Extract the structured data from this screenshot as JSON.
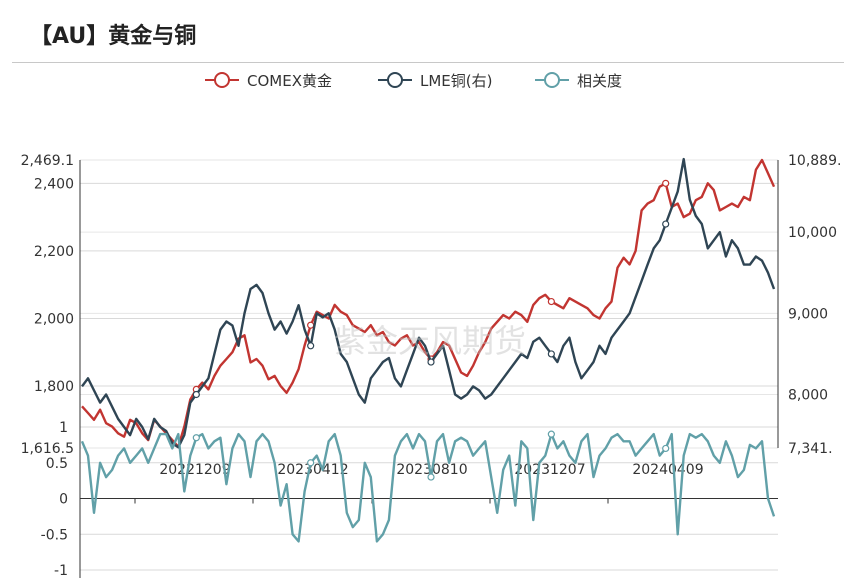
{
  "title": "【AU】黄金与铜",
  "watermark": "紫金天风期货",
  "chart_data": [
    {
      "type": "line",
      "title": "",
      "legend": {
        "position": "top-center",
        "entries": [
          "COMEX黄金",
          "LME铜(右)",
          "相关度"
        ]
      },
      "x_labels": [
        "20221209",
        "20230412",
        "20230810",
        "20231207",
        "20240409"
      ],
      "left_axis": {
        "ticks": [
          "2,469.1",
          "2,400",
          "2,200",
          "2,000",
          "1,800",
          "1,616.5"
        ],
        "range": [
          1616.5,
          2469.1
        ]
      },
      "right_axis": {
        "ticks": [
          "10,889.",
          "10,000",
          "9,000",
          "8,000",
          "7,341."
        ],
        "range": [
          7341,
          10889
        ]
      },
      "series": [
        {
          "name": "COMEX黄金",
          "axis": "left",
          "color": "#c23531",
          "values": [
            1740,
            1720,
            1700,
            1730,
            1690,
            1680,
            1660,
            1650,
            1700,
            1690,
            1660,
            1640,
            1700,
            1680,
            1660,
            1640,
            1620,
            1680,
            1760,
            1790,
            1810,
            1790,
            1830,
            1860,
            1880,
            1900,
            1940,
            1950,
            1870,
            1880,
            1860,
            1820,
            1830,
            1800,
            1780,
            1810,
            1850,
            1920,
            1980,
            2020,
            2010,
            2000,
            2040,
            2020,
            2010,
            1980,
            1970,
            1960,
            1980,
            1950,
            1960,
            1930,
            1920,
            1940,
            1950,
            1920,
            1930,
            1900,
            1880,
            1900,
            1930,
            1920,
            1880,
            1840,
            1830,
            1860,
            1900,
            1930,
            1970,
            1990,
            2010,
            2000,
            2020,
            2010,
            1990,
            2040,
            2060,
            2070,
            2050,
            2040,
            2030,
            2060,
            2050,
            2040,
            2030,
            2010,
            2000,
            2030,
            2050,
            2150,
            2180,
            2160,
            2200,
            2320,
            2340,
            2350,
            2390,
            2400,
            2330,
            2340,
            2300,
            2310,
            2350,
            2360,
            2400,
            2380,
            2320,
            2330,
            2340,
            2330,
            2360,
            2350,
            2440,
            2469,
            2430,
            2390
          ]
        },
        {
          "name": "LME铜(右)",
          "axis": "right",
          "color": "#2f4554",
          "values": [
            8100,
            8200,
            8050,
            7900,
            8000,
            7850,
            7700,
            7600,
            7500,
            7700,
            7600,
            7450,
            7700,
            7600,
            7550,
            7400,
            7350,
            7500,
            7900,
            8000,
            8100,
            8200,
            8500,
            8800,
            8900,
            8850,
            8600,
            9000,
            9300,
            9350,
            9250,
            9000,
            8800,
            8900,
            8750,
            8900,
            9100,
            8800,
            8600,
            9000,
            8950,
            9000,
            8800,
            8500,
            8400,
            8200,
            8000,
            7900,
            8200,
            8300,
            8400,
            8450,
            8200,
            8100,
            8300,
            8500,
            8700,
            8600,
            8400,
            8500,
            8600,
            8300,
            8000,
            7950,
            8000,
            8100,
            8050,
            7950,
            8000,
            8100,
            8200,
            8300,
            8400,
            8500,
            8450,
            8650,
            8700,
            8600,
            8500,
            8400,
            8600,
            8700,
            8400,
            8200,
            8300,
            8400,
            8600,
            8500,
            8700,
            8800,
            8900,
            9000,
            9200,
            9400,
            9600,
            9800,
            9900,
            10100,
            10300,
            10500,
            10900,
            10400,
            10200,
            10100,
            9800,
            9900,
            10000,
            9700,
            9900,
            9800,
            9600,
            9600,
            9700,
            9650,
            9500,
            9300
          ]
        },
        {
          "name": "相关度",
          "axis": "corr",
          "color": "#61a0a8",
          "values": [
            0.8,
            0.6,
            -0.2,
            0.5,
            0.3,
            0.4,
            0.6,
            0.7,
            0.5,
            0.6,
            0.7,
            0.5,
            0.7,
            0.9,
            0.9,
            0.7,
            0.9,
            0.1,
            0.6,
            0.85,
            0.9,
            0.7,
            0.8,
            0.85,
            0.2,
            0.7,
            0.9,
            0.8,
            0.3,
            0.8,
            0.9,
            0.8,
            0.5,
            -0.1,
            0.2,
            -0.5,
            -0.6,
            0.1,
            0.5,
            0.6,
            0.4,
            0.8,
            0.9,
            0.6,
            -0.2,
            -0.4,
            -0.3,
            0.5,
            0.3,
            -0.6,
            -0.5,
            -0.3,
            0.6,
            0.8,
            0.9,
            0.7,
            0.9,
            0.8,
            0.3,
            0.8,
            0.9,
            0.5,
            0.8,
            0.85,
            0.8,
            0.6,
            0.7,
            0.8,
            0.3,
            -0.2,
            0.4,
            0.6,
            -0.1,
            0.8,
            0.7,
            -0.3,
            0.5,
            0.6,
            0.9,
            0.7,
            0.8,
            0.6,
            0.5,
            0.8,
            0.9,
            0.3,
            0.6,
            0.7,
            0.85,
            0.9,
            0.8,
            0.8,
            0.6,
            0.7,
            0.8,
            0.9,
            0.6,
            0.7,
            0.9,
            -0.5,
            0.6,
            0.9,
            0.85,
            0.9,
            0.8,
            0.6,
            0.5,
            0.8,
            0.6,
            0.3,
            0.4,
            0.75,
            0.7,
            0.8,
            0.0,
            -0.25
          ]
        }
      ],
      "corr_axis": {
        "ticks": [
          "1",
          "0.5",
          "0",
          "-0.5",
          "-1"
        ],
        "range": [
          -1,
          1
        ]
      }
    }
  ]
}
